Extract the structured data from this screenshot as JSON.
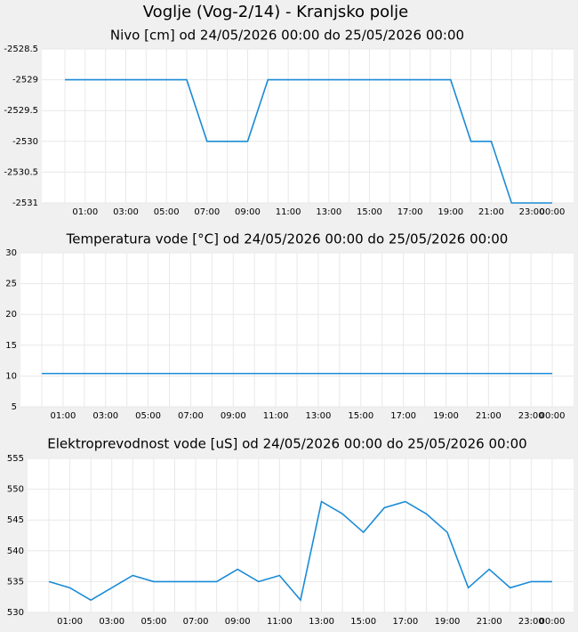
{
  "title": "Voglje (Vog-2/14) - Kranjsko polje",
  "chart_data": [
    {
      "type": "line",
      "title": "Nivo [cm] od 24/05/2026 00:00 do 25/05/2026 00:00",
      "categories": [
        null,
        "01:00",
        null,
        "03:00",
        null,
        "05:00",
        null,
        "07:00",
        null,
        "09:00",
        null,
        "11:00",
        null,
        "13:00",
        null,
        "15:00",
        null,
        "17:00",
        null,
        "19:00",
        null,
        "21:00",
        null,
        "23:00",
        "00:00"
      ],
      "values": [
        -2529,
        -2529,
        -2529,
        -2529,
        -2529,
        -2529,
        -2529,
        -2530,
        -2530,
        -2530,
        -2529,
        -2529,
        -2529,
        -2529,
        -2529,
        -2529,
        -2529,
        -2529,
        -2529,
        -2529,
        -2530,
        -2530,
        -2531,
        -2531,
        -2531
      ],
      "color": "#1a8bd6",
      "ylim": [
        -2531,
        -2528.5
      ],
      "yticks": [
        -2531,
        -2530.5,
        -2530,
        -2529.5,
        -2529,
        -2528.5
      ],
      "grid": true
    },
    {
      "type": "line",
      "title": "Temperatura vode [°C] od 24/05/2026 00:00 do 25/05/2026 00:00",
      "categories": [
        null,
        "01:00",
        null,
        "03:00",
        null,
        "05:00",
        null,
        "07:00",
        null,
        "09:00",
        null,
        "11:00",
        null,
        "13:00",
        null,
        "15:00",
        null,
        "17:00",
        null,
        "19:00",
        null,
        "21:00",
        null,
        "23:00",
        "00:00"
      ],
      "values": [
        10.4,
        10.4,
        10.4,
        10.4,
        10.4,
        10.4,
        10.4,
        10.4,
        10.4,
        10.4,
        10.4,
        10.4,
        10.4,
        10.4,
        10.4,
        10.4,
        10.4,
        10.4,
        10.4,
        10.4,
        10.4,
        10.4,
        10.4,
        10.4,
        10.4
      ],
      "color": "#1a8bd6",
      "ylim": [
        5,
        30
      ],
      "yticks": [
        5,
        10,
        15,
        20,
        25,
        30
      ],
      "grid": true
    },
    {
      "type": "line",
      "title": "Elektroprevodnost vode [uS] od 24/05/2026 00:00 do 25/05/2026 00:00",
      "categories": [
        null,
        "01:00",
        null,
        "03:00",
        null,
        "05:00",
        null,
        "07:00",
        null,
        "09:00",
        null,
        "11:00",
        null,
        "13:00",
        null,
        "15:00",
        null,
        "17:00",
        null,
        "19:00",
        null,
        "21:00",
        null,
        "23:00",
        "00:00"
      ],
      "values": [
        535,
        534,
        532,
        534,
        536,
        535,
        535,
        535,
        535,
        537,
        535,
        536,
        532,
        548,
        546,
        543,
        547,
        548,
        546,
        543,
        534,
        537,
        534,
        535,
        535
      ],
      "color": "#1a8bd6",
      "ylim": [
        530,
        555
      ],
      "yticks": [
        530,
        535,
        540,
        545,
        550,
        555
      ],
      "grid": true
    }
  ]
}
